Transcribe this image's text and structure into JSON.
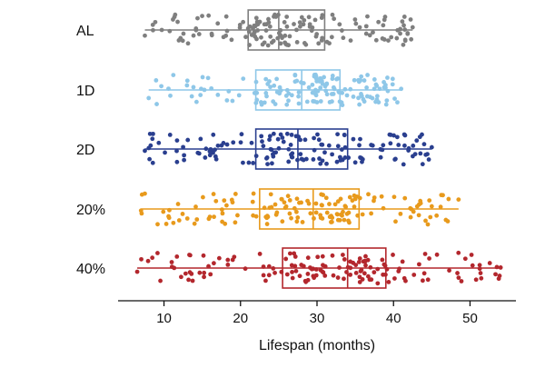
{
  "chart_data": {
    "type": "box",
    "orientation": "horizontal",
    "xlabel": "Lifespan (months)",
    "ylabel": "",
    "xlim": [
      4,
      56
    ],
    "xticks": [
      10,
      20,
      30,
      40,
      50
    ],
    "grid": false,
    "legend": "none",
    "point_count_per_group": 150,
    "categories": [
      "AL",
      "1D",
      "2D",
      "20%",
      "40%"
    ],
    "series": [
      {
        "label": "AL",
        "color": "#7f7f7f",
        "min": 7.5,
        "q1": 21.0,
        "median": 25.0,
        "q3": 31.0,
        "max": 42.5
      },
      {
        "label": "1D",
        "color": "#8ec7e8",
        "min": 8.0,
        "q1": 22.0,
        "median": 28.0,
        "q3": 33.0,
        "max": 41.0
      },
      {
        "label": "2D",
        "color": "#2a3f8f",
        "min": 7.5,
        "q1": 22.0,
        "median": 27.5,
        "q3": 34.0,
        "max": 45.0
      },
      {
        "label": "20%",
        "color": "#e89a1c",
        "min": 7.0,
        "q1": 22.5,
        "median": 29.5,
        "q3": 35.5,
        "max": 48.5
      },
      {
        "label": "40%",
        "color": "#b3272d",
        "min": 6.5,
        "q1": 25.5,
        "median": 34.0,
        "q3": 39.0,
        "max": 54.0
      }
    ]
  }
}
